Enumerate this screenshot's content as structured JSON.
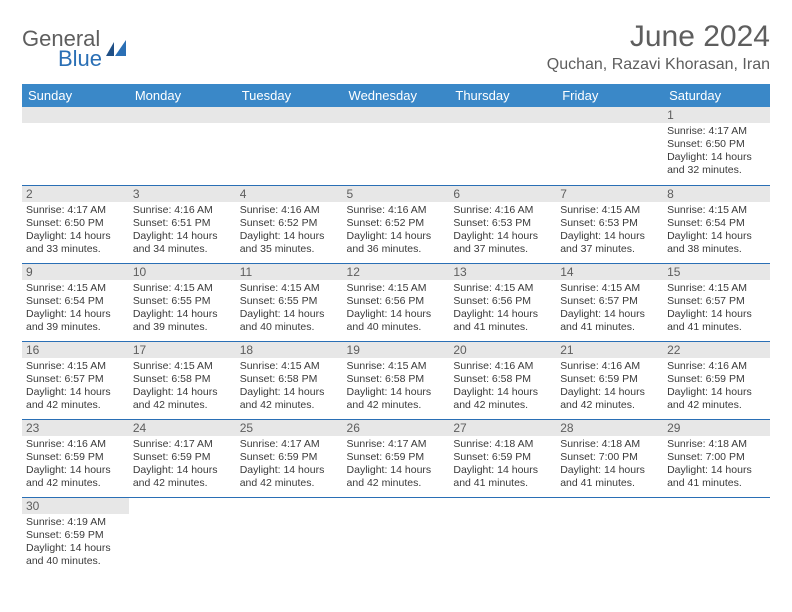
{
  "brand": {
    "word1": "General",
    "word2": "Blue"
  },
  "colors": {
    "header_bg": "#3a88c8",
    "divider": "#2a6fb5",
    "daybar_bg": "#e7e7e7",
    "text_gray": "#5e5e5e",
    "body_text": "#3a3a3a"
  },
  "title": "June 2024",
  "location": "Quchan, Razavi Khorasan, Iran",
  "weekdays": [
    "Sunday",
    "Monday",
    "Tuesday",
    "Wednesday",
    "Thursday",
    "Friday",
    "Saturday"
  ],
  "first_weekday_index": 6,
  "days": [
    {
      "n": 1,
      "sunrise": "4:17 AM",
      "sunset": "6:50 PM",
      "daylight": "14 hours and 32 minutes."
    },
    {
      "n": 2,
      "sunrise": "4:17 AM",
      "sunset": "6:50 PM",
      "daylight": "14 hours and 33 minutes."
    },
    {
      "n": 3,
      "sunrise": "4:16 AM",
      "sunset": "6:51 PM",
      "daylight": "14 hours and 34 minutes."
    },
    {
      "n": 4,
      "sunrise": "4:16 AM",
      "sunset": "6:52 PM",
      "daylight": "14 hours and 35 minutes."
    },
    {
      "n": 5,
      "sunrise": "4:16 AM",
      "sunset": "6:52 PM",
      "daylight": "14 hours and 36 minutes."
    },
    {
      "n": 6,
      "sunrise": "4:16 AM",
      "sunset": "6:53 PM",
      "daylight": "14 hours and 37 minutes."
    },
    {
      "n": 7,
      "sunrise": "4:15 AM",
      "sunset": "6:53 PM",
      "daylight": "14 hours and 37 minutes."
    },
    {
      "n": 8,
      "sunrise": "4:15 AM",
      "sunset": "6:54 PM",
      "daylight": "14 hours and 38 minutes."
    },
    {
      "n": 9,
      "sunrise": "4:15 AM",
      "sunset": "6:54 PM",
      "daylight": "14 hours and 39 minutes."
    },
    {
      "n": 10,
      "sunrise": "4:15 AM",
      "sunset": "6:55 PM",
      "daylight": "14 hours and 39 minutes."
    },
    {
      "n": 11,
      "sunrise": "4:15 AM",
      "sunset": "6:55 PM",
      "daylight": "14 hours and 40 minutes."
    },
    {
      "n": 12,
      "sunrise": "4:15 AM",
      "sunset": "6:56 PM",
      "daylight": "14 hours and 40 minutes."
    },
    {
      "n": 13,
      "sunrise": "4:15 AM",
      "sunset": "6:56 PM",
      "daylight": "14 hours and 41 minutes."
    },
    {
      "n": 14,
      "sunrise": "4:15 AM",
      "sunset": "6:57 PM",
      "daylight": "14 hours and 41 minutes."
    },
    {
      "n": 15,
      "sunrise": "4:15 AM",
      "sunset": "6:57 PM",
      "daylight": "14 hours and 41 minutes."
    },
    {
      "n": 16,
      "sunrise": "4:15 AM",
      "sunset": "6:57 PM",
      "daylight": "14 hours and 42 minutes."
    },
    {
      "n": 17,
      "sunrise": "4:15 AM",
      "sunset": "6:58 PM",
      "daylight": "14 hours and 42 minutes."
    },
    {
      "n": 18,
      "sunrise": "4:15 AM",
      "sunset": "6:58 PM",
      "daylight": "14 hours and 42 minutes."
    },
    {
      "n": 19,
      "sunrise": "4:15 AM",
      "sunset": "6:58 PM",
      "daylight": "14 hours and 42 minutes."
    },
    {
      "n": 20,
      "sunrise": "4:16 AM",
      "sunset": "6:58 PM",
      "daylight": "14 hours and 42 minutes."
    },
    {
      "n": 21,
      "sunrise": "4:16 AM",
      "sunset": "6:59 PM",
      "daylight": "14 hours and 42 minutes."
    },
    {
      "n": 22,
      "sunrise": "4:16 AM",
      "sunset": "6:59 PM",
      "daylight": "14 hours and 42 minutes."
    },
    {
      "n": 23,
      "sunrise": "4:16 AM",
      "sunset": "6:59 PM",
      "daylight": "14 hours and 42 minutes."
    },
    {
      "n": 24,
      "sunrise": "4:17 AM",
      "sunset": "6:59 PM",
      "daylight": "14 hours and 42 minutes."
    },
    {
      "n": 25,
      "sunrise": "4:17 AM",
      "sunset": "6:59 PM",
      "daylight": "14 hours and 42 minutes."
    },
    {
      "n": 26,
      "sunrise": "4:17 AM",
      "sunset": "6:59 PM",
      "daylight": "14 hours and 42 minutes."
    },
    {
      "n": 27,
      "sunrise": "4:18 AM",
      "sunset": "6:59 PM",
      "daylight": "14 hours and 41 minutes."
    },
    {
      "n": 28,
      "sunrise": "4:18 AM",
      "sunset": "7:00 PM",
      "daylight": "14 hours and 41 minutes."
    },
    {
      "n": 29,
      "sunrise": "4:18 AM",
      "sunset": "7:00 PM",
      "daylight": "14 hours and 41 minutes."
    },
    {
      "n": 30,
      "sunrise": "4:19 AM",
      "sunset": "6:59 PM",
      "daylight": "14 hours and 40 minutes."
    }
  ],
  "labels": {
    "sunrise": "Sunrise:",
    "sunset": "Sunset:",
    "daylight": "Daylight:"
  }
}
